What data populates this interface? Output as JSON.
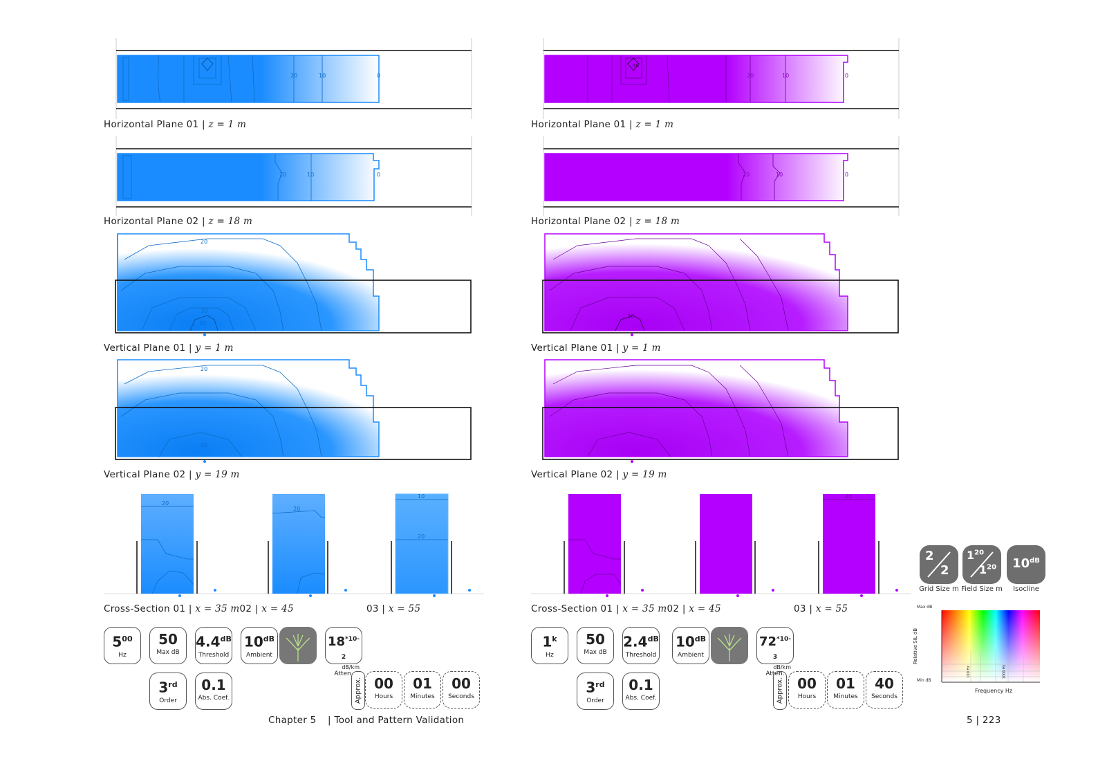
{
  "colors": {
    "blue": "#1a8cff",
    "magenta": "#b300ff"
  },
  "left": {
    "h1": {
      "title": "Horizontal Plane 01 | ",
      "param": "z = 1 m",
      "labels": [
        "20",
        "10",
        "0"
      ]
    },
    "h2": {
      "title": "Horizontal Plane 02 | ",
      "param": "z = 18 m",
      "labels": [
        "20",
        "10",
        "0"
      ]
    },
    "v1": {
      "title": "Vertical Plane 01 | ",
      "param": "y = 1 m",
      "labels": [
        "20",
        "30",
        "20"
      ]
    },
    "v2": {
      "title": "Vertical Plane 02 | ",
      "param": "y = 19 m",
      "labels": [
        "20",
        "20"
      ]
    },
    "cs": {
      "title1": "Cross-Section 01 | ",
      "param1": "x = 35 m",
      "title2": "02 | ",
      "param2": "x = 45",
      "title3": "03 | ",
      "param3": "x = 55",
      "labels": [
        "20",
        "20",
        "10",
        "20"
      ]
    },
    "params": {
      "freq": {
        "value": "5",
        "sup": "00",
        "label": "Hz"
      },
      "maxdb": {
        "value": "50",
        "label": "Max dB"
      },
      "threshold": {
        "value": "4.4",
        "sup": "dB",
        "label": "Threshold"
      },
      "ambient": {
        "value": "10",
        "sup": "dB",
        "label": "Ambient"
      },
      "atten": {
        "value": "18",
        "sup": "*10-2",
        "unit": "dB/km",
        "label": "Atten."
      },
      "order": {
        "value": "3",
        "sup": "rd",
        "label": "Order"
      },
      "abscoef": {
        "value": "0.1",
        "label": "Abs. Coef."
      },
      "approx": "Approx.",
      "hours": {
        "value": "00",
        "label": "Hours"
      },
      "minutes": {
        "value": "01",
        "label": "Minutes"
      },
      "seconds": {
        "value": "00",
        "label": "Seconds"
      }
    }
  },
  "right": {
    "h1": {
      "title": "Horizontal Plane 01 | ",
      "param": "z = 1 m",
      "labels": [
        "40",
        "20",
        "10",
        "0"
      ]
    },
    "h2": {
      "title": "Horizontal Plane 02 | ",
      "param": "z = 18 m",
      "labels": [
        "20",
        "10",
        "0"
      ]
    },
    "v1": {
      "title": "Vertical Plane 01 | ",
      "param": "y = 1 m",
      "labels": [
        "30"
      ]
    },
    "v2": {
      "title": "Vertical Plane 02 | ",
      "param": "y = 19 m",
      "labels": []
    },
    "cs": {
      "title1": "Cross-Section 01 | ",
      "param1": "x = 35 m",
      "title2": "02 | ",
      "param2": "x = 45",
      "title3": "03 | ",
      "param3": "x = 55",
      "labels": [
        "20"
      ]
    },
    "params": {
      "freq": {
        "value": "1",
        "sup": "k",
        "label": "Hz"
      },
      "maxdb": {
        "value": "50",
        "label": "Max dB"
      },
      "threshold": {
        "value": "2.4",
        "sup": "dB",
        "label": "Threshold"
      },
      "ambient": {
        "value": "10",
        "sup": "dB",
        "label": "Ambient"
      },
      "atten": {
        "value": "72",
        "sup": "*10-3",
        "unit": "dB/km",
        "label": "Atten."
      },
      "order": {
        "value": "3",
        "sup": "rd",
        "label": "Order"
      },
      "abscoef": {
        "value": "0.1",
        "label": "Abs. Coef."
      },
      "approx": "Approx.",
      "hours": {
        "value": "00",
        "label": "Hours"
      },
      "minutes": {
        "value": "01",
        "label": "Minutes"
      },
      "seconds": {
        "value": "40",
        "label": "Seconds"
      }
    }
  },
  "legend_icons": {
    "grid": {
      "top": "2",
      "bottom": "2",
      "label": "Grid Size m"
    },
    "field": {
      "top": "1",
      "topsup": "20",
      "bottom": "1",
      "bottomsup": "20",
      "label": "Field Size m"
    },
    "isoline": {
      "value": "10",
      "sup": "dB",
      "label": "Isocline"
    }
  },
  "spectrum": {
    "max": "Max dB",
    "min": "Min dB",
    "ylabel": "Relative SIL dB",
    "xlabel": "Frequency Hz",
    "tick1": "100 Hz",
    "tick2": "1000 Hz"
  },
  "footer": {
    "chapter": "Chapter 5",
    "section": "| Tool and Pattern Validation",
    "page": "5 | 223"
  }
}
